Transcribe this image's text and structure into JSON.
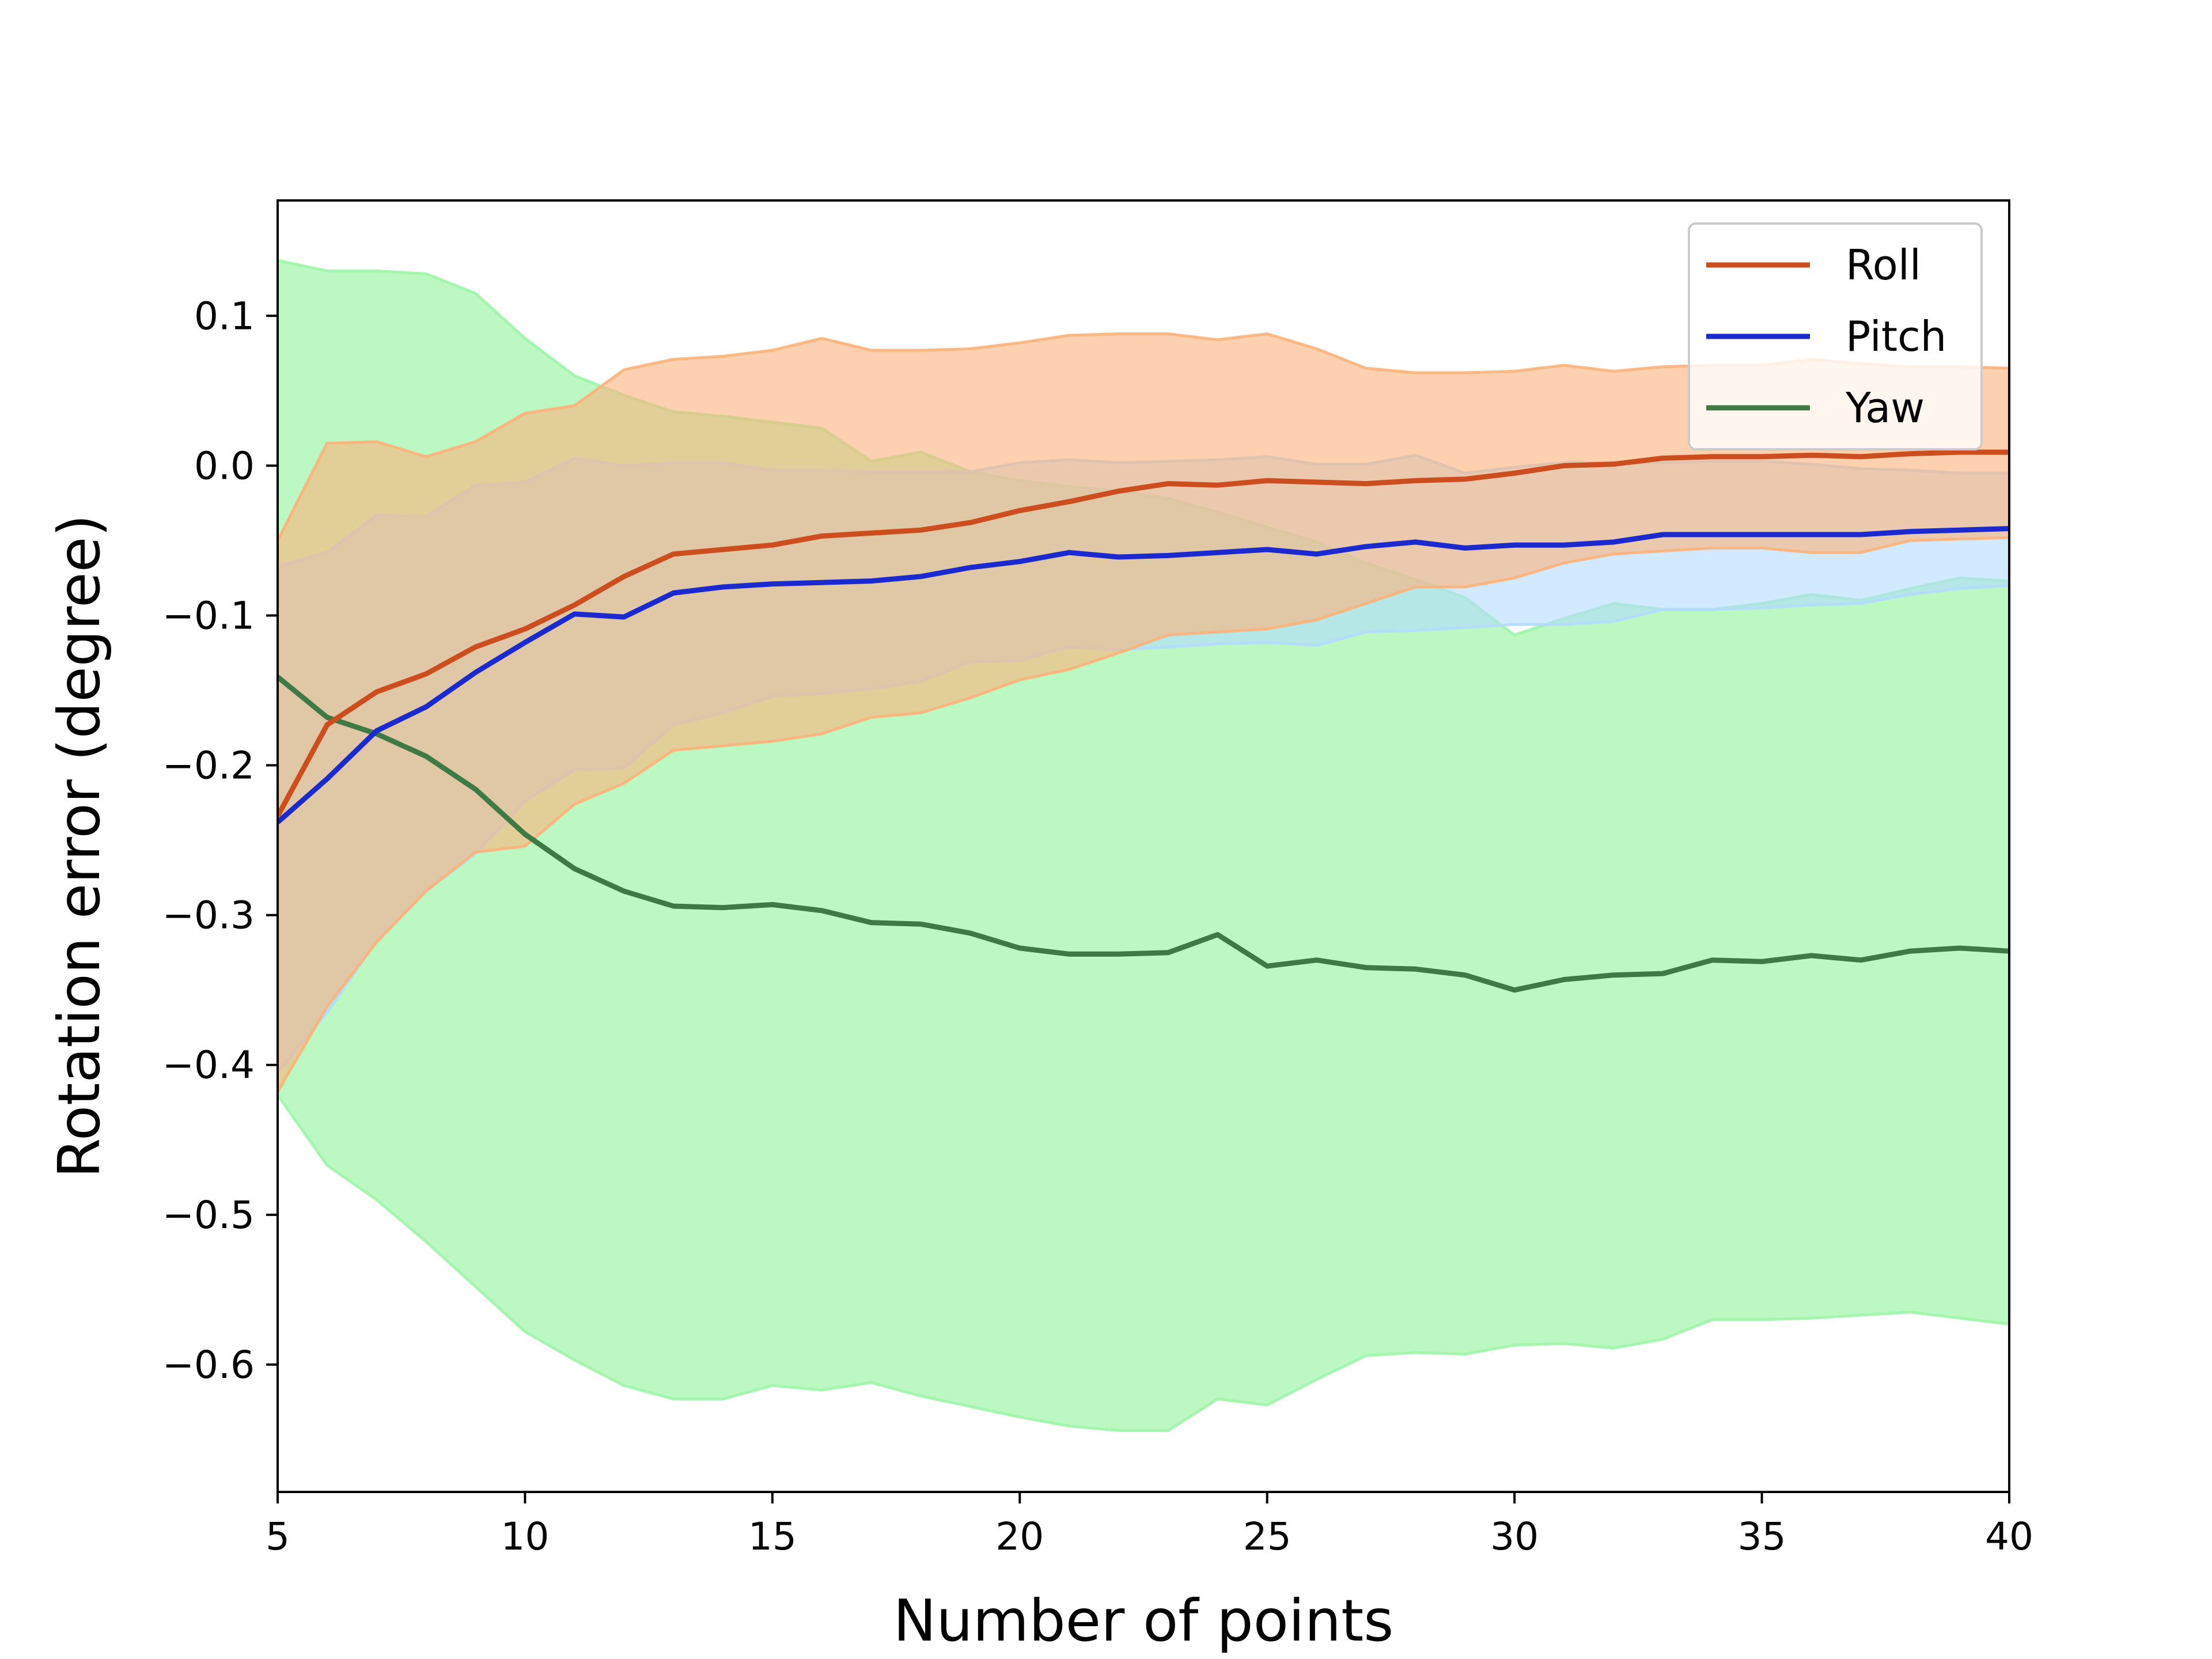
{
  "chart_data": {
    "type": "line",
    "xlabel": "Number of points",
    "ylabel": "Rotation error (degree)",
    "xlim": [
      5,
      40
    ],
    "ylim": [
      -0.685,
      0.177
    ],
    "xticks": [
      5,
      10,
      15,
      20,
      25,
      30,
      35,
      40
    ],
    "xtick_labels": [
      "5",
      "10",
      "15",
      "20",
      "25",
      "30",
      "35",
      "40"
    ],
    "yticks": [
      0.1,
      0.0,
      -0.1,
      -0.2,
      -0.3,
      -0.4,
      -0.5,
      -0.6
    ],
    "ytick_labels": [
      "0.1",
      "0.0",
      "−0.1",
      "−0.2",
      "−0.3",
      "−0.4",
      "−0.5",
      "−0.6"
    ],
    "grid": false,
    "legend_position": "top-right",
    "x": [
      5,
      6,
      7,
      8,
      9,
      10,
      11,
      12,
      13,
      14,
      15,
      16,
      17,
      18,
      19,
      20,
      21,
      22,
      23,
      24,
      25,
      26,
      27,
      28,
      29,
      30,
      31,
      32,
      33,
      34,
      35,
      36,
      37,
      38,
      39,
      40
    ],
    "series": [
      {
        "name": "Yaw",
        "color": "#3d7a45",
        "band_color": "#9ff5a8",
        "values": [
          -0.141,
          -0.168,
          -0.179,
          -0.194,
          -0.216,
          -0.246,
          -0.269,
          -0.284,
          -0.294,
          -0.295,
          -0.293,
          -0.297,
          -0.305,
          -0.306,
          -0.312,
          -0.322,
          -0.326,
          -0.326,
          -0.325,
          -0.313,
          -0.334,
          -0.33,
          -0.335,
          -0.336,
          -0.34,
          -0.35,
          -0.343,
          -0.34,
          -0.339,
          -0.33,
          -0.331,
          -0.327,
          -0.33,
          -0.324,
          -0.322,
          -0.324
        ],
        "upper": [
          0.137,
          0.13,
          0.13,
          0.128,
          0.115,
          0.085,
          0.06,
          0.047,
          0.036,
          0.033,
          0.029,
          0.025,
          0.003,
          0.009,
          -0.004,
          -0.01,
          -0.014,
          -0.017,
          -0.022,
          -0.031,
          -0.041,
          -0.051,
          -0.065,
          -0.076,
          -0.088,
          -0.113,
          -0.102,
          -0.092,
          -0.096,
          -0.096,
          -0.092,
          -0.086,
          -0.09,
          -0.082,
          -0.075,
          -0.077
        ],
        "lower": [
          -0.42,
          -0.467,
          -0.49,
          -0.518,
          -0.548,
          -0.578,
          -0.597,
          -0.614,
          -0.623,
          -0.623,
          -0.614,
          -0.617,
          -0.612,
          -0.621,
          -0.628,
          -0.635,
          -0.641,
          -0.644,
          -0.644,
          -0.623,
          -0.627,
          -0.61,
          -0.594,
          -0.592,
          -0.593,
          -0.587,
          -0.586,
          -0.589,
          -0.583,
          -0.57,
          -0.57,
          -0.569,
          -0.567,
          -0.565,
          -0.569,
          -0.573
        ]
      },
      {
        "name": "Pitch",
        "color": "#1a2acf",
        "band_color": "#b3dcff",
        "values": [
          -0.238,
          -0.209,
          -0.177,
          -0.161,
          -0.138,
          -0.118,
          -0.099,
          -0.101,
          -0.085,
          -0.081,
          -0.079,
          -0.078,
          -0.077,
          -0.074,
          -0.068,
          -0.064,
          -0.058,
          -0.061,
          -0.06,
          -0.058,
          -0.056,
          -0.059,
          -0.054,
          -0.051,
          -0.055,
          -0.053,
          -0.053,
          -0.051,
          -0.046,
          -0.046,
          -0.046,
          -0.046,
          -0.046,
          -0.044,
          -0.043,
          -0.042
        ],
        "upper": [
          -0.067,
          -0.058,
          -0.033,
          -0.034,
          -0.013,
          -0.011,
          0.005,
          0.0,
          0.002,
          0.002,
          -0.003,
          -0.003,
          -0.004,
          -0.004,
          -0.004,
          0.002,
          0.004,
          0.002,
          0.003,
          0.004,
          0.006,
          0.001,
          0.001,
          0.007,
          -0.005,
          -0.001,
          0.002,
          0.002,
          0.002,
          0.003,
          0.003,
          0.001,
          -0.002,
          -0.003,
          -0.005,
          -0.005
        ],
        "lower": [
          -0.405,
          -0.365,
          -0.317,
          -0.284,
          -0.259,
          -0.224,
          -0.203,
          -0.202,
          -0.173,
          -0.165,
          -0.154,
          -0.152,
          -0.149,
          -0.144,
          -0.131,
          -0.13,
          -0.121,
          -0.123,
          -0.121,
          -0.119,
          -0.118,
          -0.12,
          -0.111,
          -0.11,
          -0.108,
          -0.106,
          -0.106,
          -0.104,
          -0.096,
          -0.096,
          -0.095,
          -0.093,
          -0.092,
          -0.086,
          -0.082,
          -0.08
        ]
      },
      {
        "name": "Roll",
        "color": "#cc4d1d",
        "band_color": "#fcb27a",
        "values": [
          -0.234,
          -0.173,
          -0.151,
          -0.139,
          -0.121,
          -0.109,
          -0.093,
          -0.074,
          -0.059,
          -0.056,
          -0.053,
          -0.047,
          -0.045,
          -0.043,
          -0.038,
          -0.03,
          -0.024,
          -0.017,
          -0.012,
          -0.013,
          -0.01,
          -0.011,
          -0.012,
          -0.01,
          -0.009,
          -0.005,
          0.0,
          0.001,
          0.005,
          0.006,
          0.006,
          0.007,
          0.006,
          0.008,
          0.009,
          0.009
        ],
        "upper": [
          -0.05,
          0.015,
          0.016,
          0.006,
          0.016,
          0.035,
          0.04,
          0.064,
          0.071,
          0.073,
          0.077,
          0.085,
          0.077,
          0.077,
          0.078,
          0.082,
          0.087,
          0.088,
          0.088,
          0.084,
          0.088,
          0.078,
          0.065,
          0.062,
          0.062,
          0.063,
          0.067,
          0.063,
          0.066,
          0.067,
          0.067,
          0.071,
          0.068,
          0.066,
          0.066,
          0.065
        ],
        "lower": [
          -0.418,
          -0.361,
          -0.318,
          -0.284,
          -0.258,
          -0.254,
          -0.226,
          -0.212,
          -0.19,
          -0.187,
          -0.184,
          -0.179,
          -0.168,
          -0.165,
          -0.155,
          -0.143,
          -0.136,
          -0.125,
          -0.113,
          -0.111,
          -0.109,
          -0.103,
          -0.092,
          -0.081,
          -0.081,
          -0.075,
          -0.065,
          -0.059,
          -0.057,
          -0.055,
          -0.055,
          -0.058,
          -0.058,
          -0.05,
          -0.049,
          -0.048
        ]
      }
    ],
    "legend_order": [
      "Roll",
      "Pitch",
      "Yaw"
    ]
  }
}
